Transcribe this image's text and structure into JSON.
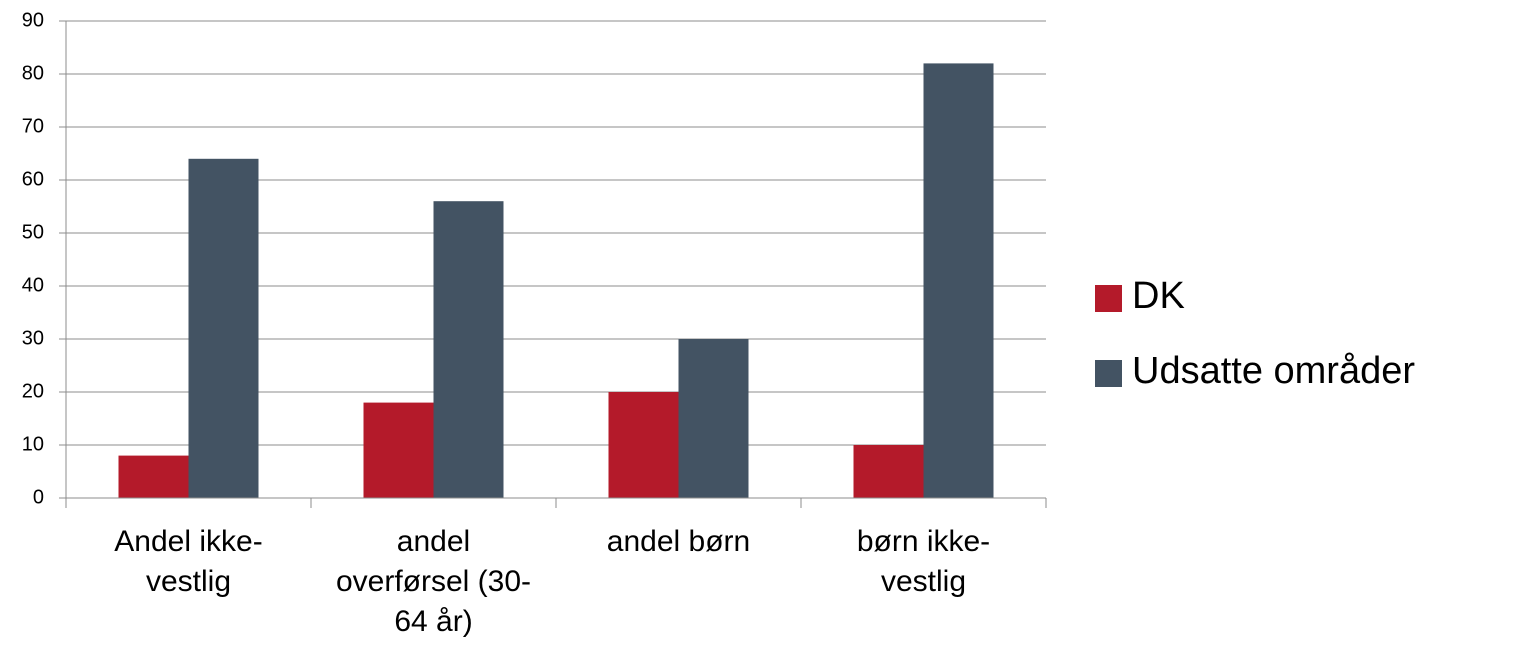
{
  "chart_data": {
    "type": "bar",
    "categories": [
      "Andel ikke-vestlig",
      "andel overførsel (30-64 år)",
      "andel børn",
      "børn ikke-vestlig"
    ],
    "series": [
      {
        "name": "DK",
        "color": "#b41a2a",
        "values": [
          8,
          18,
          20,
          10
        ]
      },
      {
        "name": "Udsatte områder",
        "color": "#435363",
        "values": [
          64,
          56,
          30,
          82
        ]
      }
    ],
    "ylim": [
      0,
      90
    ],
    "yticks": [
      0,
      10,
      20,
      30,
      40,
      50,
      60,
      70,
      80,
      90
    ],
    "grid": true,
    "legend": "right"
  }
}
